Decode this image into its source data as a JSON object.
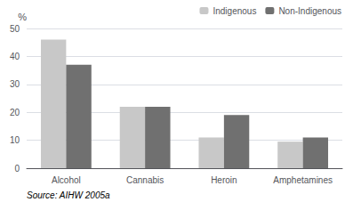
{
  "chart_data": {
    "type": "bar",
    "categories": [
      "Alcohol",
      "Cannabis",
      "Heroin",
      "Amphetamines"
    ],
    "series": [
      {
        "name": "Indigenous",
        "color": "#c8c8c8",
        "values": [
          46,
          22,
          11,
          9.5
        ]
      },
      {
        "name": "Non-Indigenous",
        "color": "#707070",
        "values": [
          37,
          22,
          19,
          11
        ]
      }
    ],
    "ylabel": "%",
    "annotations": [
      "Source: AIHW 2005a"
    ],
    "ylim": [
      0,
      50
    ],
    "yticks": [
      0,
      10,
      20,
      30,
      40,
      50
    ],
    "grid": true,
    "legend": "upper right"
  }
}
